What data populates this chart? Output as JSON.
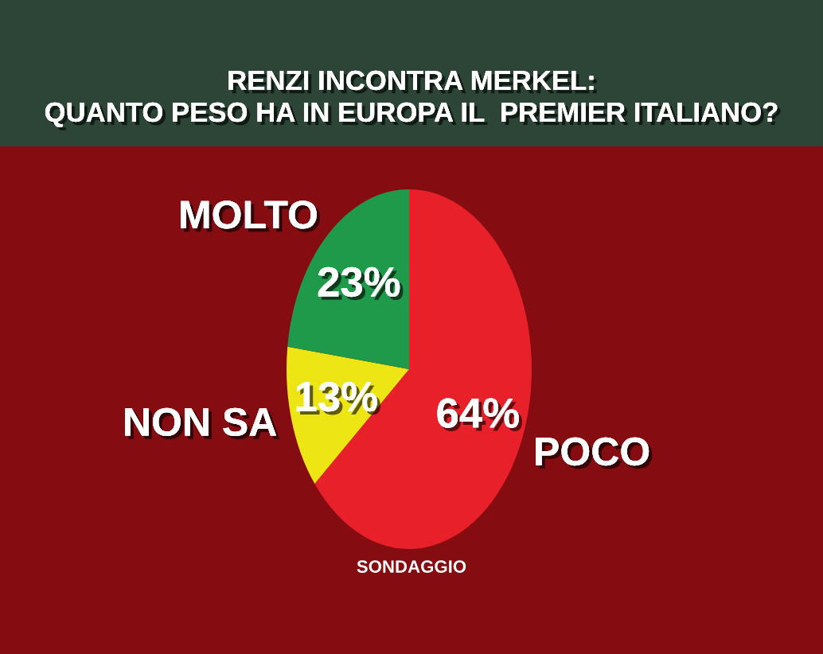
{
  "chart_data": {
    "type": "pie",
    "title": "RENZI INCONTRA MERKEL:\nQUANTO PESO HA IN EUROPA IL  PREMIER ITALIANO?",
    "categories": [
      "POCO",
      "NON SA",
      "MOLTO"
    ],
    "values": [
      64,
      13,
      23
    ],
    "value_labels": [
      "64%",
      "13%",
      "23%"
    ],
    "colors": [
      "#e8202a",
      "#eee515",
      "#1f9a4a"
    ],
    "annotations": [
      "SONDAGGIO"
    ],
    "legend": false
  }
}
